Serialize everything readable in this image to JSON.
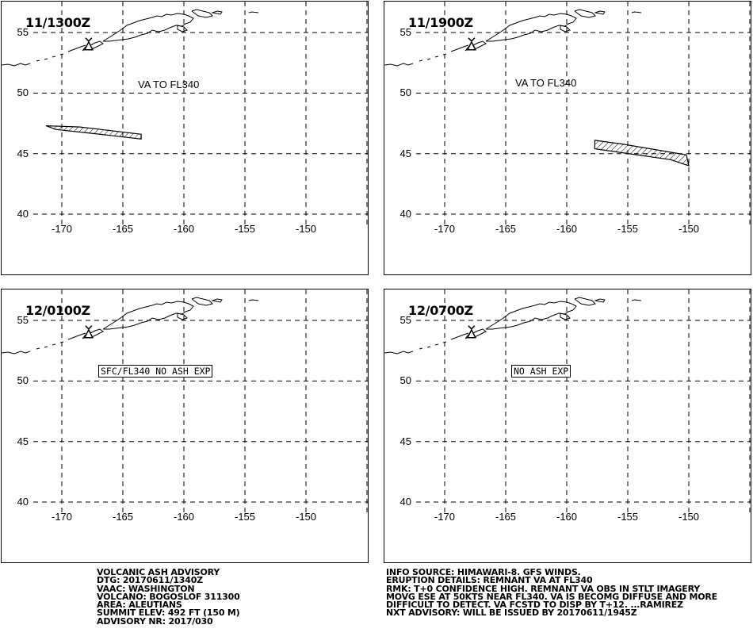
{
  "panels": [
    {
      "time": "11/1300Z",
      "note": "VA TO FL340",
      "note_style": "plain",
      "ash_polygon": [
        [
          -171.3,
          47.3
        ],
        [
          -168.5,
          47.2
        ],
        [
          -163.5,
          46.6
        ],
        [
          -163.5,
          46.2
        ],
        [
          -166.0,
          46.5
        ],
        [
          -170.5,
          47.0
        ]
      ]
    },
    {
      "time": "11/1900Z",
      "note": "VA TO FL340",
      "note_style": "plain",
      "ash_polygon": [
        [
          -157.7,
          46.1
        ],
        [
          -155.5,
          45.8
        ],
        [
          -150.2,
          44.9
        ],
        [
          -150.0,
          44.0
        ],
        [
          -151.5,
          44.5
        ],
        [
          -157.7,
          45.4
        ]
      ]
    },
    {
      "time": "12/0100Z",
      "note": "SFC/FL340 NO ASH EXP",
      "note_style": "boxed",
      "ash_polygon": []
    },
    {
      "time": "12/0700Z",
      "note": "NO ASH EXP",
      "note_style": "boxed",
      "ash_polygon": []
    }
  ],
  "map": {
    "lon_range": [
      -173.0,
      -144.5
    ],
    "lat_range": [
      37.5,
      57.5
    ],
    "lon_ticks": [
      "-170",
      "-165",
      "-160",
      "-155",
      "-150"
    ],
    "lon_tick_values": [
      -170,
      -165,
      -160,
      -155,
      -150
    ],
    "lat_ticks": [
      "55",
      "50",
      "45",
      "40"
    ],
    "lat_tick_values": [
      55,
      50,
      45,
      40
    ],
    "volcano_symbol": "volcano-triangle-icon",
    "volcano_location": [
      -167.8,
      53.9
    ],
    "coast_color": "#000000",
    "grid_color": "#000000",
    "ash_hatch_color": "#000000"
  },
  "advisory_left": [
    "VOLCANIC ASH ADVISORY",
    "DTG: 20170611/1340Z",
    "VAAC: WASHINGTON",
    "VOLCANO: BOGOSLOF 311300",
    "AREA: ALEUTIANS",
    "SUMMIT ELEV: 492 FT (150 M)",
    "ADVISORY NR: 2017/030"
  ],
  "advisory_right": [
    "INFO SOURCE: HIMAWARI-8. GFS WINDS.",
    "ERUPTION DETAILS: REMNANT VA AT FL340",
    "RMK: T+0 CONFIDENCE HIGH. REMNANT VA OBS IN STLT IMAGERY",
    "MOVG ESE AT 50KTS NEAR FL340. VA IS BECOMG DIFFUSE AND MORE",
    "DIFFICULT TO DETECT. VA FCSTD TO DISP BY T+12. ...RAMIREZ",
    "NXT ADVISORY: WILL BE ISSUED BY 20170611/1945Z"
  ]
}
